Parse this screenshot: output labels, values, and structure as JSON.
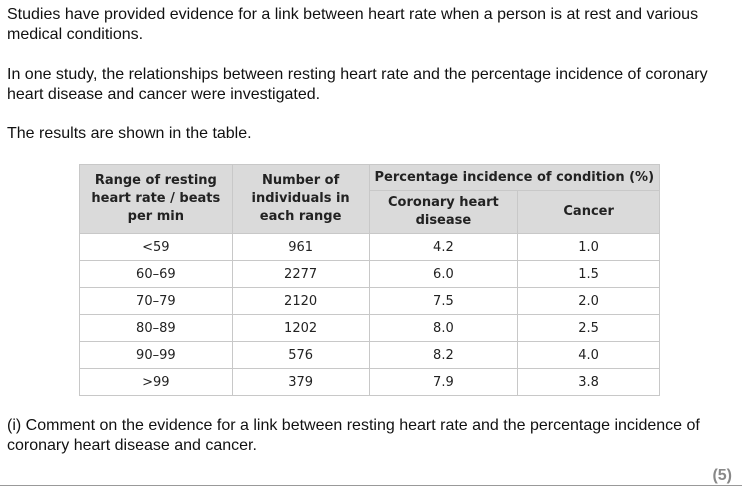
{
  "paragraphs": [
    "Studies have provided evidence for a link between heart rate when a person is at rest and various medical conditions.",
    "In one study, the relationships between resting heart rate and the percentage incidence of coronary heart disease and cancer were investigated.",
    "The results are shown in the table."
  ],
  "table": {
    "headers": {
      "range": "Range of resting heart rate / beats per min",
      "number": "Number of individuals in each range",
      "percentage": "Percentage incidence of condition (%)",
      "chd": "Coronary heart disease",
      "cancer": "Cancer"
    },
    "rows": [
      [
        "<59",
        "961",
        "4.2",
        "1.0"
      ],
      [
        "60–69",
        "2277",
        "6.0",
        "1.5"
      ],
      [
        "70–79",
        "2120",
        "7.5",
        "2.0"
      ],
      [
        "80–89",
        "1202",
        "8.0",
        "2.5"
      ],
      [
        "90–99",
        "576",
        "8.2",
        "4.0"
      ],
      [
        ">99",
        "379",
        "7.9",
        "3.8"
      ]
    ]
  },
  "question": "(i) Comment on the evidence for a link between resting heart rate and the percentage incidence of coronary heart disease and cancer.",
  "marks": "(5)"
}
